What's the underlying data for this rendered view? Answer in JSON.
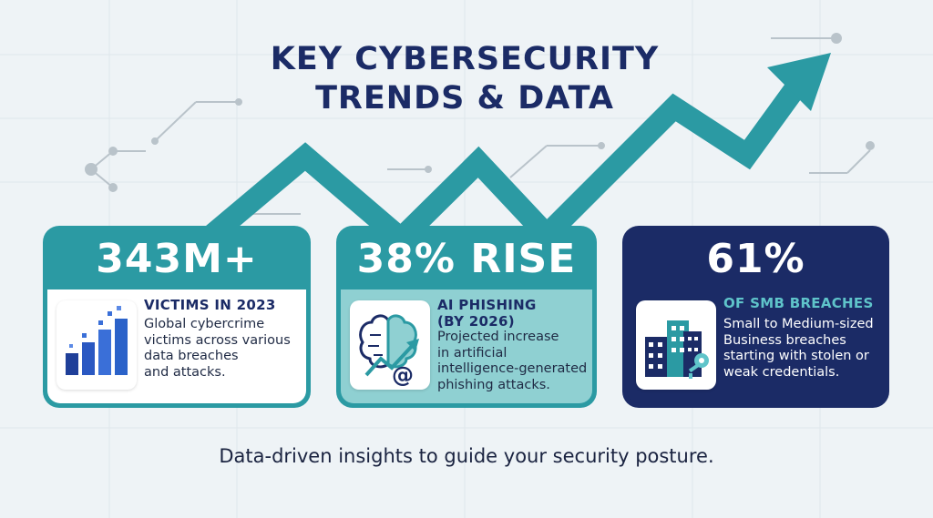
{
  "title": {
    "line1": "KEY CYBERSECURITY",
    "line2": "TRENDS & DATA"
  },
  "cards": [
    {
      "stat": "343M+",
      "heading": "VICTIMS IN 2023",
      "desc_lines": [
        "Global cybercrime",
        "victims across various",
        "data breaches",
        "and attacks."
      ],
      "icon": "bar-chart-icon"
    },
    {
      "stat": "38% RISE",
      "heading_lines": [
        "AI PHISHING",
        "(BY 2026)"
      ],
      "desc_lines": [
        "Projected increase",
        "in artificial",
        "intelligence-generated",
        "phishing attacks."
      ],
      "icon": "brain-phishing-icon"
    },
    {
      "stat": "61%",
      "heading": "OF SMB BREACHES",
      "desc_lines": [
        "Small to Medium-sized",
        "Business breaches",
        "starting with stolen or",
        "weak credentials."
      ],
      "icon": "buildings-key-icon"
    }
  ],
  "tagline": "Data-driven insights to guide your security posture.",
  "colors": {
    "navy": "#1b2b66",
    "teal": "#2b9aa3",
    "light_teal": "#8fd0d2",
    "background": "#eef3f6"
  }
}
